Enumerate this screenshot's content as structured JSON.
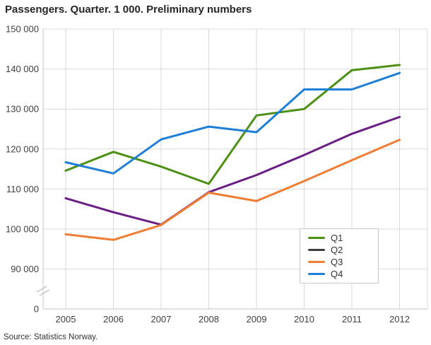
{
  "title": "Passengers. Quarter. 1 000. Preliminary numbers",
  "source": "Source: Statistics Norway.",
  "colors": {
    "background": "#ffffff",
    "title_text": "#262626",
    "tick_text": "#404040",
    "grid": "#d9d9d9",
    "axis": "#c6c6c6",
    "legend_border": "#c9c9c9",
    "legend_text": "#333333"
  },
  "chart_data": {
    "type": "line",
    "title": "Passengers. Quarter. 1 000. Preliminary numbers",
    "xlabel": "",
    "ylabel": "",
    "x": [
      "2005",
      "2006",
      "2007",
      "2008",
      "2009",
      "2010",
      "2011",
      "2012"
    ],
    "y_ticks": [
      {
        "label": "150 000",
        "value": 150000
      },
      {
        "label": "140 000",
        "value": 140000
      },
      {
        "label": "130 000",
        "value": 130000
      },
      {
        "label": "120 000",
        "value": 120000
      },
      {
        "label": "110 000",
        "value": 110000
      },
      {
        "label": "100 000",
        "value": 100000
      },
      {
        "label": "90 000",
        "value": 90000
      },
      {
        "label": "0",
        "value": 0
      }
    ],
    "ylim": [
      90000,
      150000
    ],
    "y_axis_break": true,
    "grid": true,
    "legend_position": "inside-bottom-right",
    "series": [
      {
        "name": "Q1",
        "color": "#4c9016",
        "legend_color": "#4c9016",
        "values": [
          114600,
          119300,
          115600,
          111300,
          128400,
          130000,
          139700,
          141000
        ]
      },
      {
        "name": "Q2",
        "color": "#6a1d85",
        "legend_color": "#3d3d3d",
        "values": [
          107700,
          104200,
          101100,
          109200,
          113500,
          118500,
          123800,
          128000
        ]
      },
      {
        "name": "Q3",
        "color": "#ef7d33",
        "legend_color": "#ef7d33",
        "values": [
          98700,
          97300,
          101000,
          109100,
          107000,
          112000,
          117200,
          122300
        ]
      },
      {
        "name": "Q4",
        "color": "#1f7fd6",
        "legend_color": "#1f7fd6",
        "values": [
          116700,
          113900,
          122400,
          125600,
          124200,
          134900,
          134900,
          139000
        ]
      }
    ]
  }
}
